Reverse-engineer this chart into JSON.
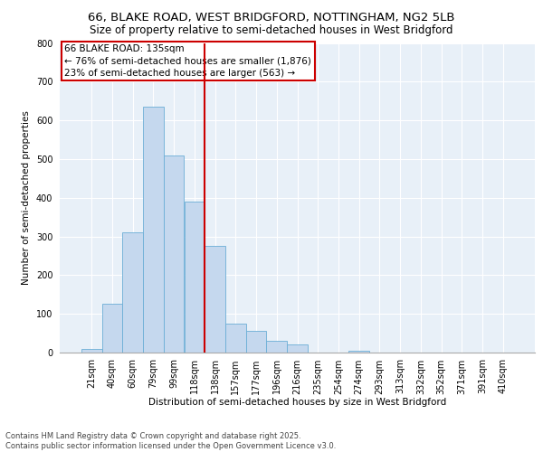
{
  "title1": "66, BLAKE ROAD, WEST BRIDGFORD, NOTTINGHAM, NG2 5LB",
  "title2": "Size of property relative to semi-detached houses in West Bridgford",
  "xlabel": "Distribution of semi-detached houses by size in West Bridgford",
  "ylabel": "Number of semi-detached properties",
  "bar_labels": [
    "21sqm",
    "40sqm",
    "60sqm",
    "79sqm",
    "99sqm",
    "118sqm",
    "138sqm",
    "157sqm",
    "177sqm",
    "196sqm",
    "216sqm",
    "235sqm",
    "254sqm",
    "274sqm",
    "293sqm",
    "313sqm",
    "332sqm",
    "352sqm",
    "371sqm",
    "391sqm",
    "410sqm"
  ],
  "bar_heights": [
    10,
    125,
    310,
    635,
    510,
    390,
    275,
    75,
    55,
    30,
    20,
    0,
    0,
    5,
    0,
    0,
    0,
    0,
    0,
    0,
    0
  ],
  "bar_color": "#c5d8ee",
  "bar_edgecolor": "#6baed6",
  "property_label": "66 BLAKE ROAD: 135sqm",
  "annotation_line1": "← 76% of semi-detached houses are smaller (1,876)",
  "annotation_line2": "23% of semi-detached houses are larger (563) →",
  "vline_color": "#cc0000",
  "vline_x_index": 6.5,
  "ylim": [
    0,
    800
  ],
  "yticks": [
    0,
    100,
    200,
    300,
    400,
    500,
    600,
    700,
    800
  ],
  "background_color": "#e8f0f8",
  "footer_line1": "Contains HM Land Registry data © Crown copyright and database right 2025.",
  "footer_line2": "Contains public sector information licensed under the Open Government Licence v3.0.",
  "title1_fontsize": 9.5,
  "title2_fontsize": 8.5,
  "axis_label_fontsize": 7.5,
  "tick_fontsize": 7,
  "annotation_fontsize": 7.5,
  "footer_fontsize": 6
}
